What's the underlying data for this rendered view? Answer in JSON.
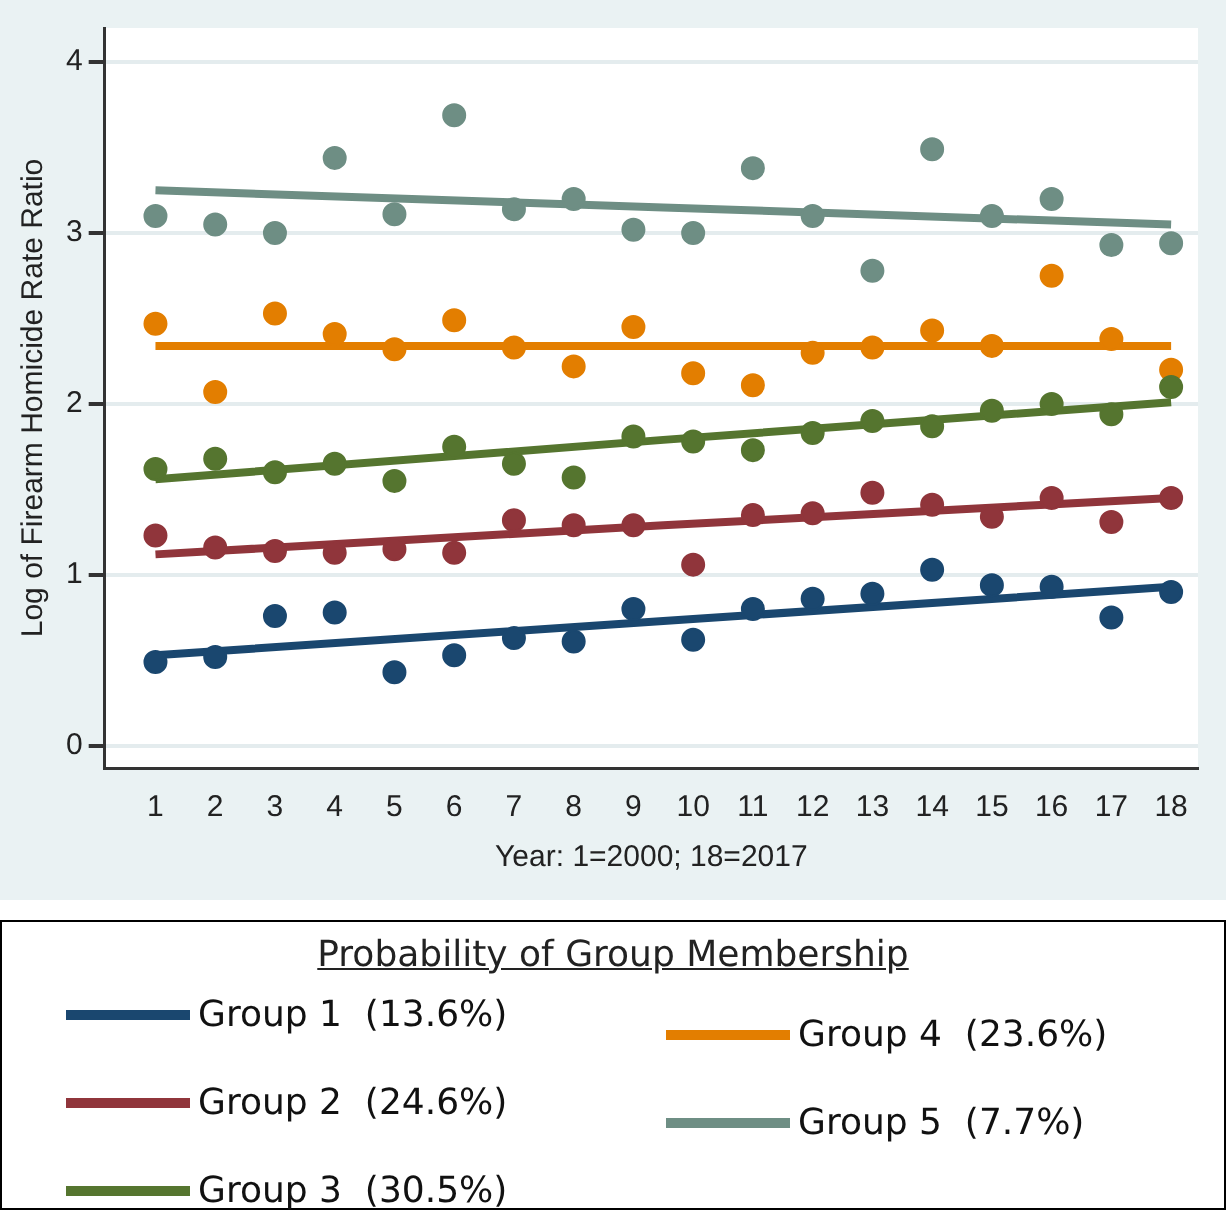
{
  "chart_data": {
    "type": "scatter",
    "xlabel": "Year: 1=2000; 18=2017",
    "ylabel": "Log of Firearm Homicide Rate Ratio",
    "legend_title": "Probability of Group Membership",
    "legend": "bottom",
    "grid": "y",
    "marker": "circle",
    "x": [
      1,
      2,
      3,
      4,
      5,
      6,
      7,
      8,
      9,
      10,
      11,
      12,
      13,
      14,
      15,
      16,
      17,
      18
    ],
    "xlim": [
      0.15,
      18.45
    ],
    "xticks": [
      1,
      2,
      3,
      4,
      5,
      6,
      7,
      8,
      9,
      10,
      11,
      12,
      13,
      14,
      15,
      16,
      17,
      18
    ],
    "ylim": [
      -0.13,
      4.2
    ],
    "yticks": [
      0,
      1,
      2,
      3,
      4
    ],
    "series": [
      {
        "color": "#1a476f",
        "values": [
          0.49,
          0.52,
          0.76,
          0.78,
          0.43,
          0.53,
          0.63,
          0.61,
          0.8,
          0.62,
          0.8,
          0.86,
          0.89,
          1.03,
          0.94,
          0.93,
          0.75,
          0.9
        ]
      },
      {
        "color": "#90353b",
        "values": [
          1.23,
          1.16,
          1.14,
          1.13,
          1.15,
          1.13,
          1.32,
          1.29,
          1.29,
          1.06,
          1.35,
          1.36,
          1.48,
          1.41,
          1.34,
          1.45,
          1.31,
          1.45
        ]
      },
      {
        "color": "#55752f",
        "values": [
          1.62,
          1.68,
          1.6,
          1.65,
          1.55,
          1.75,
          1.65,
          1.57,
          1.81,
          1.78,
          1.73,
          1.83,
          1.9,
          1.87,
          1.96,
          2.0,
          1.94,
          2.1
        ]
      },
      {
        "color": "#e37e00",
        "values": [
          2.47,
          2.07,
          2.53,
          2.41,
          2.32,
          2.49,
          2.33,
          2.22,
          2.45,
          2.18,
          2.11,
          2.3,
          2.33,
          2.43,
          2.34,
          2.75,
          2.38,
          2.2
        ]
      },
      {
        "color": "#6e8e84",
        "values": [
          3.1,
          3.05,
          3.0,
          3.44,
          3.11,
          3.69,
          3.14,
          3.2,
          3.02,
          3.0,
          3.38,
          3.1,
          2.78,
          3.49,
          3.1,
          3.2,
          2.93,
          2.94
        ]
      },
      {
        "type": "line",
        "marker": "none",
        "name": "Group 1  (13.6%)",
        "color": "#1a476f",
        "x": [
          1,
          9.5,
          18
        ],
        "values": [
          0.53,
          0.73,
          0.93
        ]
      },
      {
        "type": "line",
        "marker": "none",
        "name": "Group 2  (24.6%)",
        "color": "#90353b",
        "x": [
          1,
          9.5,
          18
        ],
        "values": [
          1.12,
          1.29,
          1.45
        ]
      },
      {
        "type": "line",
        "marker": "none",
        "name": "Group 3  (30.5%)",
        "color": "#55752f",
        "x": [
          1,
          9.5,
          18
        ],
        "values": [
          1.56,
          1.79,
          2.01
        ]
      },
      {
        "type": "line",
        "marker": "none",
        "name": "Group 4  (23.6%)",
        "color": "#e37e00",
        "x": [
          1,
          9.5,
          18
        ],
        "values": [
          2.34,
          2.34,
          2.34
        ]
      },
      {
        "type": "line",
        "marker": "none",
        "name": "Group 5  (7.7%)",
        "color": "#6e8e84",
        "x": [
          1,
          9.5,
          18
        ],
        "values": [
          3.25,
          3.15,
          3.05
        ]
      }
    ]
  }
}
